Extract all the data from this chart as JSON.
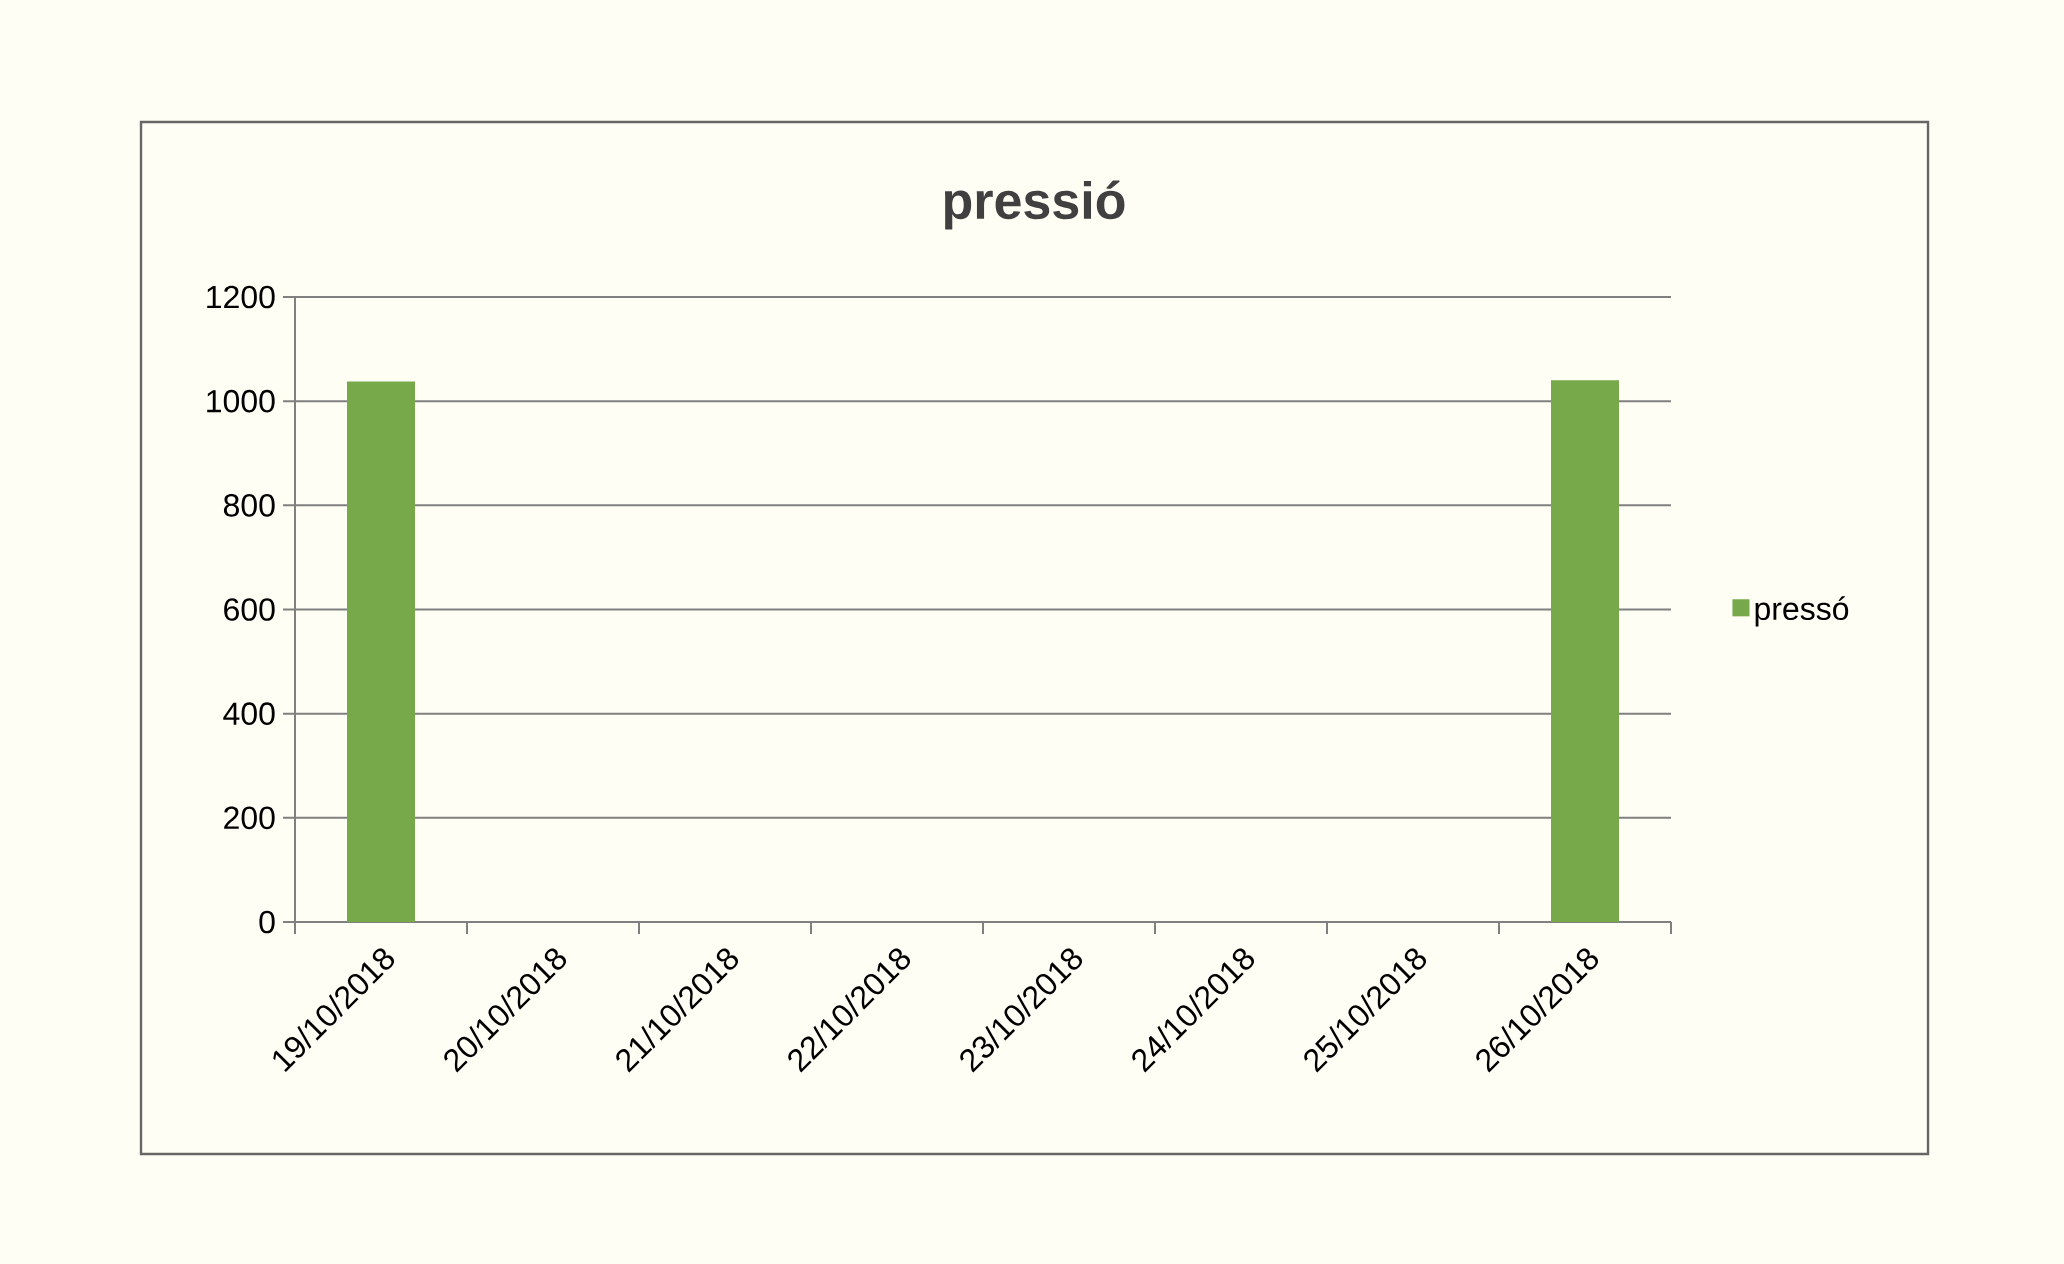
{
  "chart_data": {
    "type": "bar",
    "title": "pressió",
    "categories": [
      "19/10/2018",
      "20/10/2018",
      "21/10/2018",
      "22/10/2018",
      "23/10/2018",
      "24/10/2018",
      "25/10/2018",
      "26/10/2018"
    ],
    "series": [
      {
        "name": "pressó",
        "color": "#77a94a",
        "values": [
          1038,
          null,
          null,
          null,
          null,
          null,
          null,
          1040
        ]
      }
    ],
    "ylim": [
      0,
      1200
    ],
    "yticks": [
      0,
      200,
      400,
      600,
      800,
      1000,
      1200
    ],
    "grid": "y",
    "legend": "right"
  }
}
